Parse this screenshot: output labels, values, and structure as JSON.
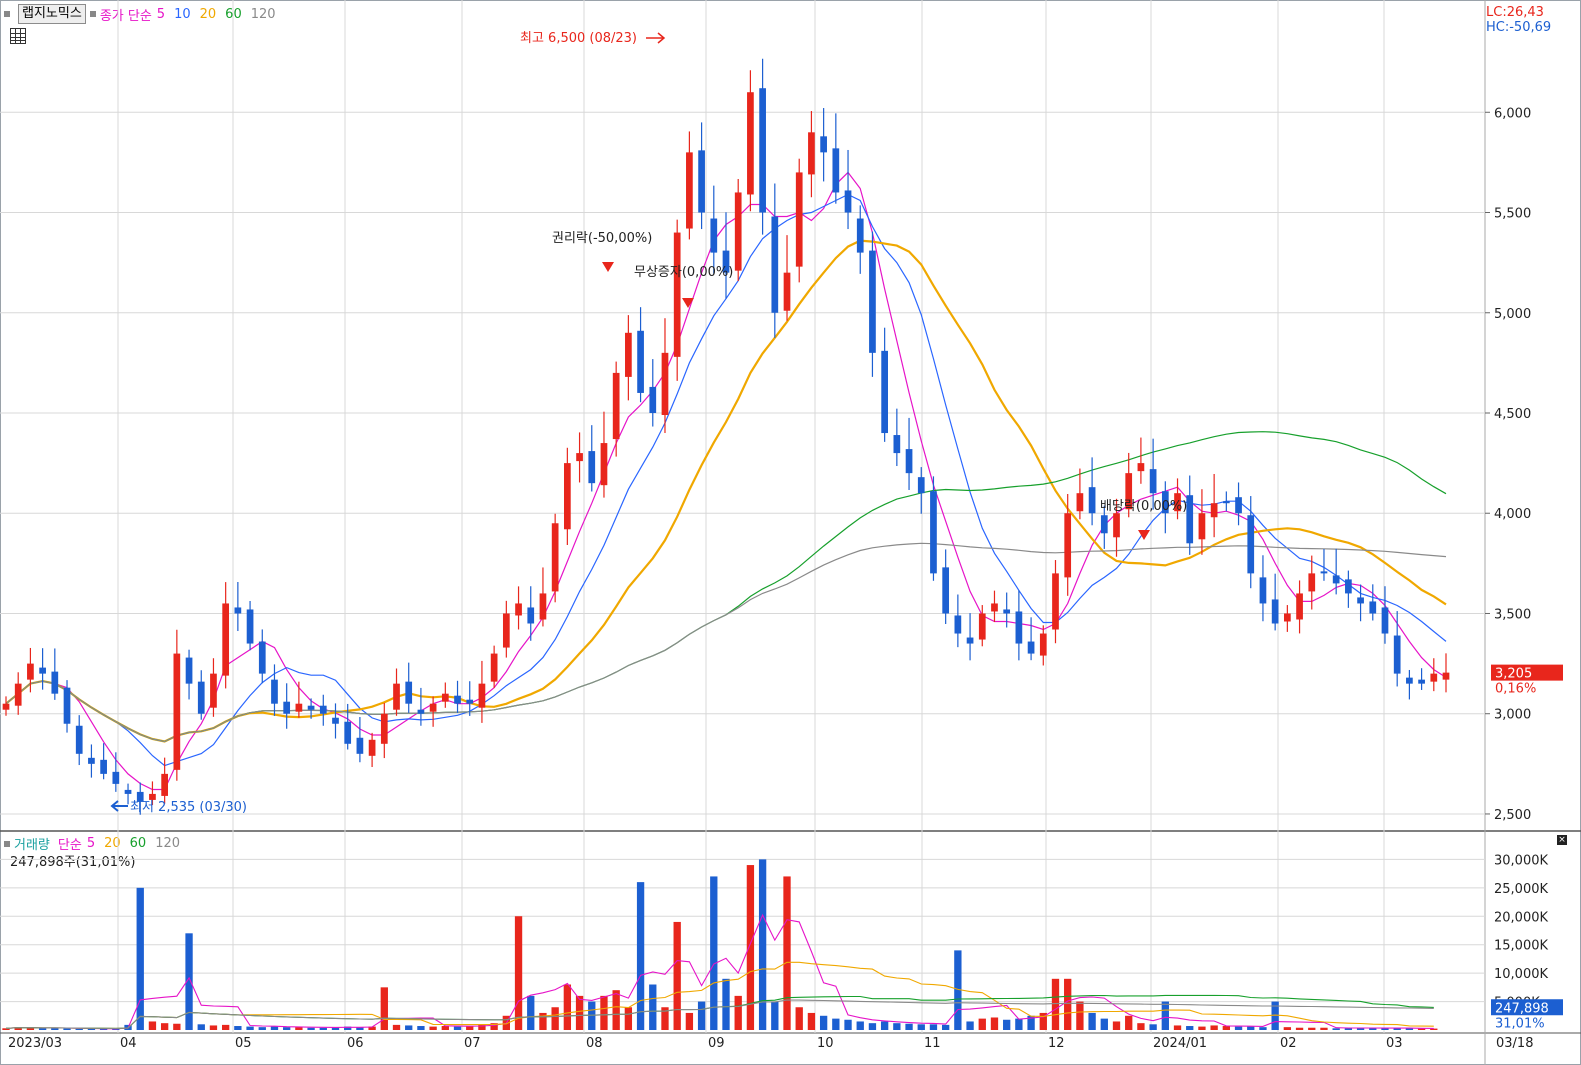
{
  "header": {
    "stock_name": "랩지노믹스",
    "ma_label": "종가 단순",
    "ma_periods": [
      "5",
      "10",
      "20",
      "60",
      "120"
    ],
    "lc": "LC:26,43",
    "hc": "HC:-50,69"
  },
  "colors": {
    "up": "#e8261c",
    "down": "#1c5fd1",
    "ma5": "#e614c8",
    "ma10": "#2a66ff",
    "ma20": "#f0a800",
    "ma60": "#17a02c",
    "ma120": "#8a8a8a",
    "grid": "#d8d8d8"
  },
  "annotations": {
    "high": "최고 6,500 (08/23)",
    "low": "최저 2,535 (03/30)",
    "event_rights": "권리락(-50,00%)",
    "event_bonus": "무상증자(0,00%)",
    "event_dividend": "배당락(0,00%)"
  },
  "price_axis": {
    "ticks": [
      "6,000",
      "5,500",
      "5,000",
      "4,500",
      "4,000",
      "3,500",
      "3,000",
      "2,500"
    ],
    "current_price": "3,205",
    "current_change": "0,16%"
  },
  "volume_panel": {
    "label": "거래량",
    "ma_label": "단순",
    "ma_periods": [
      "5",
      "20",
      "60",
      "120"
    ],
    "info": "247,898주(31,01%)",
    "ticks": [
      "30,000K",
      "25,000K",
      "20,000K",
      "15,000K",
      "10,000K",
      "5,000K"
    ],
    "current_volume": "247,898",
    "current_pct": "31,01%"
  },
  "x_axis": {
    "labels": [
      "2023/03",
      "04",
      "05",
      "06",
      "07",
      "08",
      "09",
      "10",
      "11",
      "12",
      "2024/01",
      "02",
      "03"
    ],
    "end_label": "03/18"
  },
  "chart_data": {
    "type": "candlestick",
    "y_range": [
      2420,
      6560
    ],
    "volume_range_k": [
      0,
      32000
    ],
    "months": [
      "2023/03",
      "04",
      "05",
      "06",
      "07",
      "08",
      "09",
      "10",
      "11",
      "12",
      "2024/01",
      "02",
      "03"
    ],
    "close_series": [
      3050,
      3150,
      3250,
      3200,
      3100,
      2950,
      2800,
      2750,
      2700,
      2650,
      2600,
      2560,
      2600,
      2700,
      3300,
      3150,
      3000,
      3200,
      3550,
      3500,
      3350,
      3200,
      3050,
      3000,
      3050,
      3020,
      3000,
      2950,
      2850,
      2800,
      2870,
      3000,
      3150,
      3050,
      3000,
      3050,
      3100,
      3050,
      3050,
      3150,
      3300,
      3500,
      3550,
      3450,
      3600,
      3950,
      4250,
      4300,
      4150,
      4350,
      4700,
      4900,
      4600,
      4500,
      4800,
      5400,
      5800,
      5500,
      5300,
      5200,
      5600,
      6100,
      5500,
      5000,
      5200,
      5700,
      5900,
      5800,
      5600,
      5500,
      5300,
      4800,
      4400,
      4300,
      4200,
      4100,
      3700,
      3500,
      3400,
      3350,
      3500,
      3550,
      3500,
      3350,
      3300,
      3400,
      3700,
      4000,
      4100,
      4000,
      3900,
      4000,
      4200,
      4250,
      4100,
      4000,
      4100,
      3850,
      4000,
      4050,
      4050,
      4000,
      3700,
      3550,
      3450,
      3500,
      3600,
      3700,
      3700,
      3650,
      3600,
      3550,
      3500,
      3400,
      3200,
      3150,
      3150,
      3200,
      3205
    ],
    "volume_series_k": [
      300,
      500,
      400,
      300,
      350,
      250,
      200,
      180,
      200,
      220,
      900,
      25000,
      1500,
      1200,
      1100,
      17000,
      1000,
      800,
      900,
      700,
      600,
      500,
      600,
      500,
      500,
      400,
      400,
      500,
      600,
      500,
      600,
      7500,
      900,
      800,
      700,
      600,
      700,
      600,
      700,
      900,
      1200,
      2500,
      20000,
      6000,
      3000,
      4000,
      8000,
      6000,
      5000,
      6000,
      7000,
      4000,
      26000,
      8000,
      4000,
      19000,
      3000,
      5000,
      27000,
      9000,
      6000,
      29000,
      30000,
      5000,
      27000,
      4000,
      3000,
      2500,
      2000,
      1800,
      1500,
      1200,
      1500,
      1200,
      1100,
      1000,
      1000,
      900,
      14000,
      1500,
      2000,
      2200,
      1800,
      2000,
      2500,
      3000,
      9000,
      9000,
      5000,
      3000,
      2000,
      1500,
      2500,
      1200,
      1000,
      5000,
      800,
      700,
      600,
      800,
      700,
      600,
      600,
      500,
      5000,
      500,
      400,
      400,
      400,
      300,
      300,
      400,
      350,
      300,
      300,
      300,
      250,
      248
    ]
  }
}
